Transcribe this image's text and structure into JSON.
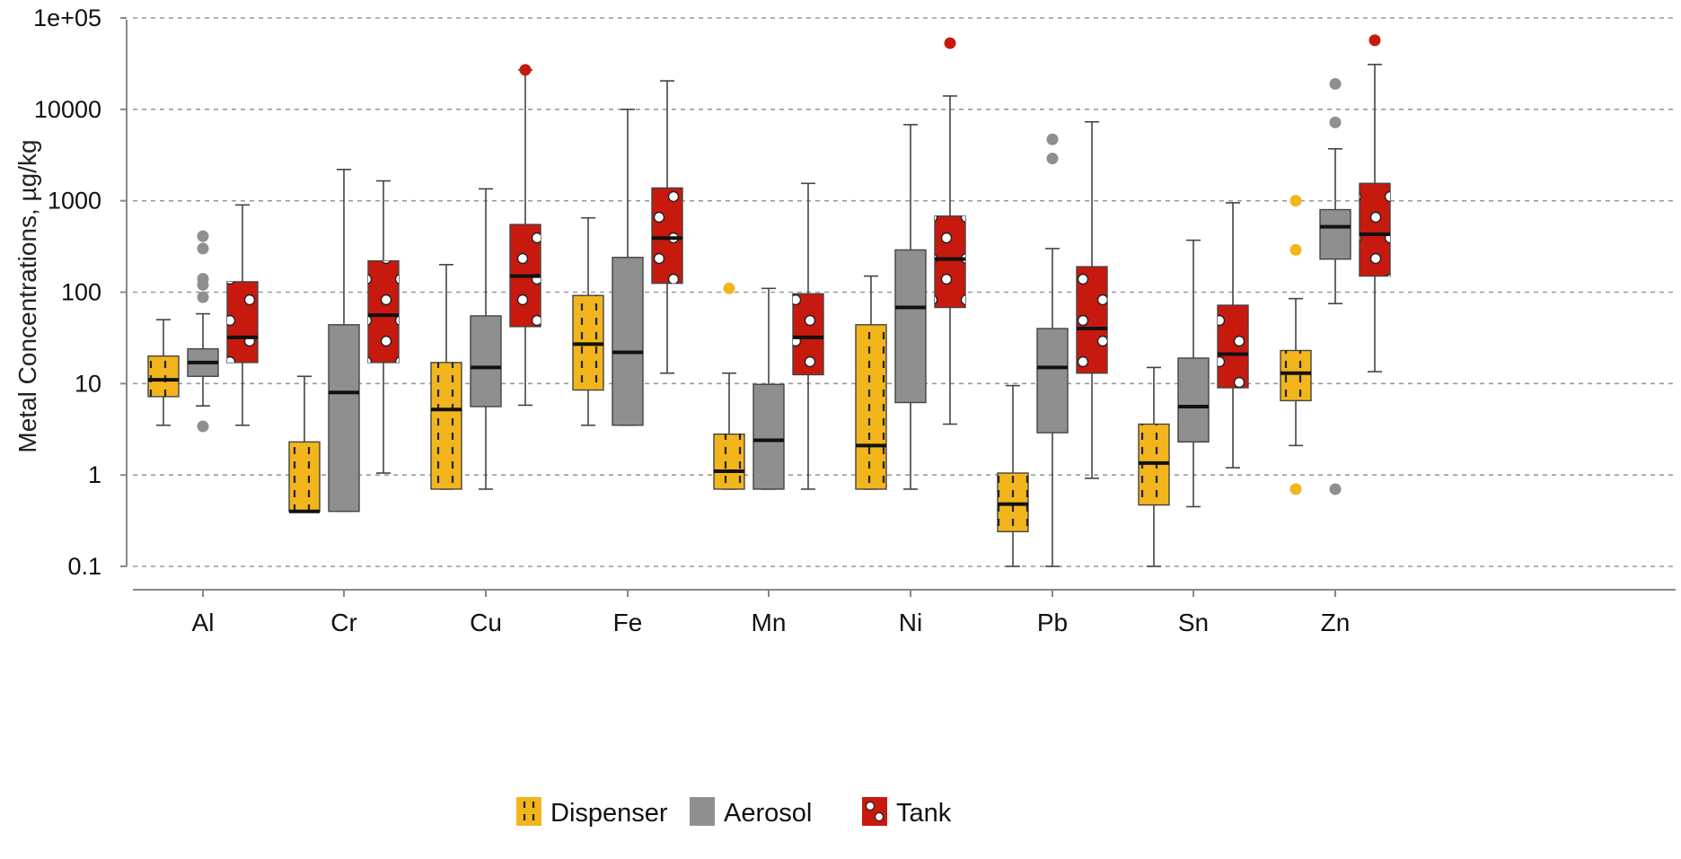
{
  "chart_data": {
    "type": "box",
    "title": "",
    "ylabel": "Metal Concentrations, µg/kg",
    "xlabel": "",
    "yscale": "log",
    "ylim": [
      0.1,
      100000
    ],
    "yticks": [
      {
        "value": 100000,
        "label": "1e+05"
      },
      {
        "value": 10000,
        "label": "10000"
      },
      {
        "value": 1000,
        "label": "1000"
      },
      {
        "value": 100,
        "label": "100"
      },
      {
        "value": 10,
        "label": "10"
      },
      {
        "value": 1,
        "label": "1"
      },
      {
        "value": 0.1,
        "label": "0.1"
      }
    ],
    "grid": "horizontal-dashed",
    "legend_position": "bottom",
    "colors": {
      "Dispenser": "#f2b51c",
      "Aerosol": "#8f8f8f",
      "Tank": "#c8190f"
    },
    "categories": [
      "Al",
      "Cr",
      "Cu",
      "Fe",
      "Mn",
      "Ni",
      "Pb",
      "Sn",
      "Zn"
    ],
    "series": [
      {
        "name": "Dispenser",
        "pattern": "dashes",
        "boxes": [
          {
            "category": "Al",
            "min": 3.5,
            "q1": 7.2,
            "median": 11,
            "q3": 20,
            "max": 50,
            "outliers": []
          },
          {
            "category": "Cr",
            "min": 0.4,
            "q1": 0.4,
            "median": 0.4,
            "q3": 2.3,
            "max": 12,
            "outliers": []
          },
          {
            "category": "Cu",
            "min": 0.7,
            "q1": 0.7,
            "median": 5.2,
            "q3": 17,
            "max": 200,
            "outliers": []
          },
          {
            "category": "Fe",
            "min": 3.5,
            "q1": 8.5,
            "median": 27,
            "q3": 92,
            "max": 650,
            "outliers": []
          },
          {
            "category": "Mn",
            "min": 0.7,
            "q1": 0.7,
            "median": 1.1,
            "q3": 2.8,
            "max": 13,
            "outliers": [
              110
            ]
          },
          {
            "category": "Ni",
            "min": 0.7,
            "q1": 0.7,
            "median": 2.1,
            "q3": 44,
            "max": 150,
            "outliers": []
          },
          {
            "category": "Pb",
            "min": 0.1,
            "q1": 0.24,
            "median": 0.48,
            "q3": 1.05,
            "max": 9.5,
            "outliers": []
          },
          {
            "category": "Sn",
            "min": 0.1,
            "q1": 0.47,
            "median": 1.35,
            "q3": 3.6,
            "max": 15,
            "outliers": []
          },
          {
            "category": "Zn",
            "min": 2.1,
            "q1": 6.5,
            "median": 13,
            "q3": 23,
            "max": 85,
            "outliers": [
              0.7,
              290,
              1000
            ]
          }
        ]
      },
      {
        "name": "Aerosol",
        "pattern": "none",
        "boxes": [
          {
            "category": "Al",
            "min": 5.7,
            "q1": 12,
            "median": 17,
            "q3": 24,
            "max": 58,
            "outliers": [
              3.4,
              88,
              120,
              140,
              300,
              410
            ]
          },
          {
            "category": "Cr",
            "min": 0.4,
            "q1": 0.4,
            "median": 8,
            "q3": 44,
            "max": 2200,
            "outliers": []
          },
          {
            "category": "Cu",
            "min": 0.7,
            "q1": 5.6,
            "median": 15,
            "q3": 55,
            "max": 1350,
            "outliers": []
          },
          {
            "category": "Fe",
            "min": 3.5,
            "q1": 3.5,
            "median": 22,
            "q3": 240,
            "max": 10000,
            "outliers": []
          },
          {
            "category": "Mn",
            "min": 0.7,
            "q1": 0.7,
            "median": 2.4,
            "q3": 9.8,
            "max": 110,
            "outliers": []
          },
          {
            "category": "Ni",
            "min": 0.7,
            "q1": 6.2,
            "median": 68,
            "q3": 290,
            "max": 6800,
            "outliers": []
          },
          {
            "category": "Pb",
            "min": 0.1,
            "q1": 2.9,
            "median": 15,
            "q3": 40,
            "max": 300,
            "outliers": [
              2900,
              4700
            ]
          },
          {
            "category": "Sn",
            "min": 0.45,
            "q1": 2.3,
            "median": 5.6,
            "q3": 19,
            "max": 370,
            "outliers": []
          },
          {
            "category": "Zn",
            "min": 75,
            "q1": 230,
            "median": 520,
            "q3": 800,
            "max": 3700,
            "outliers": [
              0.7,
              7200,
              19000
            ]
          }
        ]
      },
      {
        "name": "Tank",
        "pattern": "circles",
        "boxes": [
          {
            "category": "Al",
            "min": 3.5,
            "q1": 17,
            "median": 32,
            "q3": 130,
            "max": 900,
            "outliers": []
          },
          {
            "category": "Cr",
            "min": 1.05,
            "q1": 17,
            "median": 56,
            "q3": 220,
            "max": 1650,
            "outliers": []
          },
          {
            "category": "Cu",
            "min": 5.8,
            "q1": 42,
            "median": 150,
            "q3": 550,
            "max": 27000,
            "outliers": [
              27000
            ]
          },
          {
            "category": "Fe",
            "min": 13,
            "q1": 125,
            "median": 390,
            "q3": 1380,
            "max": 20500,
            "outliers": []
          },
          {
            "category": "Mn",
            "min": 0.7,
            "q1": 12.5,
            "median": 32,
            "q3": 96,
            "max": 1550,
            "outliers": []
          },
          {
            "category": "Ni",
            "min": 3.6,
            "q1": 68,
            "median": 230,
            "q3": 680,
            "max": 14000,
            "outliers": [
              53000
            ]
          },
          {
            "category": "Pb",
            "min": 0.92,
            "q1": 13,
            "median": 40,
            "q3": 190,
            "max": 7300,
            "outliers": []
          },
          {
            "category": "Sn",
            "min": 1.2,
            "q1": 9,
            "median": 21,
            "q3": 72,
            "max": 950,
            "outliers": []
          },
          {
            "category": "Zn",
            "min": 13.5,
            "q1": 150,
            "median": 430,
            "q3": 1550,
            "max": 31000,
            "outliers": [
              57000
            ]
          }
        ]
      }
    ]
  }
}
